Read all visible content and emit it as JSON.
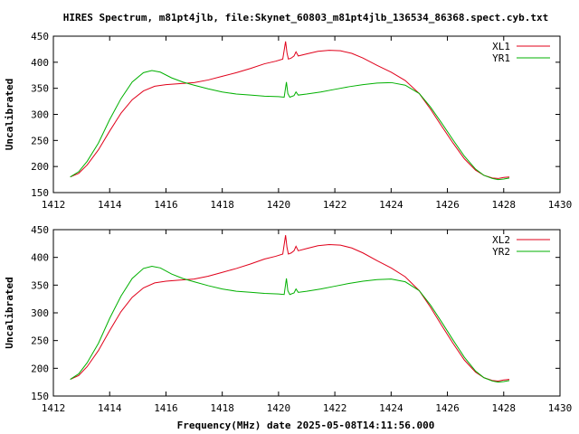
{
  "title": "HIRES Spectrum, m81pt4jlb, file:Skynet_60803_m81pt4jlb_136534_86368.spect.cyb.txt",
  "xlabel": "Frequency(MHz) date 2025-05-08T14:11:56.000",
  "chart_data": [
    {
      "type": "line",
      "ylabel": "Uncalibrated",
      "xlim": [
        1412,
        1430
      ],
      "ylim": [
        150,
        450
      ],
      "xticks": [
        "1412",
        "1414",
        "1416",
        "1418",
        "1420",
        "1422",
        "1424",
        "1426",
        "1428",
        "1430"
      ],
      "yticks": [
        "150",
        "200",
        "250",
        "300",
        "350",
        "400",
        "450"
      ],
      "legend_position": "top-right",
      "series": [
        {
          "name": "XL1",
          "color": "#e0001a",
          "x": [
            1412.6,
            1412.9,
            1413.2,
            1413.6,
            1414.0,
            1414.4,
            1414.8,
            1415.2,
            1415.6,
            1416.0,
            1416.5,
            1417.0,
            1417.5,
            1418.0,
            1418.5,
            1419.0,
            1419.5,
            1419.9,
            1420.15,
            1420.25,
            1420.3,
            1420.35,
            1420.45,
            1420.55,
            1420.62,
            1420.7,
            1421.0,
            1421.4,
            1421.8,
            1422.2,
            1422.6,
            1423.0,
            1423.5,
            1424.0,
            1424.5,
            1425.0,
            1425.4,
            1425.8,
            1426.2,
            1426.6,
            1427.0,
            1427.3,
            1427.6,
            1427.8,
            1428.0,
            1428.2
          ],
          "y": [
            180,
            187,
            203,
            232,
            268,
            302,
            328,
            345,
            354,
            357,
            359,
            361,
            366,
            373,
            380,
            388,
            397,
            402,
            406,
            440,
            418,
            406,
            408,
            412,
            420,
            412,
            416,
            421,
            423,
            422,
            417,
            408,
            394,
            381,
            365,
            340,
            310,
            277,
            245,
            215,
            193,
            183,
            178,
            177,
            179,
            180
          ]
        },
        {
          "name": "YR1",
          "color": "#00b000",
          "x": [
            1412.6,
            1412.9,
            1413.2,
            1413.6,
            1414.0,
            1414.4,
            1414.8,
            1415.2,
            1415.5,
            1415.8,
            1416.2,
            1416.6,
            1417.0,
            1417.5,
            1418.0,
            1418.5,
            1419.0,
            1419.5,
            1420.0,
            1420.2,
            1420.28,
            1420.33,
            1420.4,
            1420.55,
            1420.62,
            1420.7,
            1421.0,
            1421.5,
            1422.0,
            1422.5,
            1423.0,
            1423.5,
            1424.0,
            1424.5,
            1425.0,
            1425.4,
            1425.8,
            1426.2,
            1426.6,
            1427.0,
            1427.3,
            1427.6,
            1427.8,
            1428.0,
            1428.2
          ],
          "y": [
            180,
            190,
            210,
            245,
            290,
            330,
            362,
            380,
            384,
            381,
            370,
            362,
            356,
            349,
            343,
            339,
            337,
            335,
            334,
            333,
            362,
            340,
            333,
            336,
            343,
            337,
            339,
            343,
            348,
            353,
            357,
            360,
            361,
            356,
            340,
            314,
            283,
            251,
            220,
            195,
            183,
            177,
            175,
            176,
            178
          ]
        }
      ]
    },
    {
      "type": "line",
      "ylabel": "Uncalibrated",
      "xlim": [
        1412,
        1430
      ],
      "ylim": [
        150,
        450
      ],
      "xticks": [
        "1412",
        "1414",
        "1416",
        "1418",
        "1420",
        "1422",
        "1424",
        "1426",
        "1428",
        "1430"
      ],
      "yticks": [
        "150",
        "200",
        "250",
        "300",
        "350",
        "400",
        "450"
      ],
      "legend_position": "top-right",
      "series": [
        {
          "name": "XL2",
          "color": "#e0001a",
          "x": [
            1412.6,
            1412.9,
            1413.2,
            1413.6,
            1414.0,
            1414.4,
            1414.8,
            1415.2,
            1415.6,
            1416.0,
            1416.5,
            1417.0,
            1417.5,
            1418.0,
            1418.5,
            1419.0,
            1419.5,
            1419.9,
            1420.15,
            1420.25,
            1420.3,
            1420.35,
            1420.45,
            1420.55,
            1420.62,
            1420.7,
            1421.0,
            1421.4,
            1421.8,
            1422.2,
            1422.6,
            1423.0,
            1423.5,
            1424.0,
            1424.5,
            1425.0,
            1425.4,
            1425.8,
            1426.2,
            1426.6,
            1427.0,
            1427.3,
            1427.6,
            1427.8,
            1428.0,
            1428.2
          ],
          "y": [
            180,
            187,
            203,
            232,
            268,
            302,
            328,
            345,
            354,
            357,
            359,
            361,
            366,
            373,
            380,
            388,
            397,
            402,
            406,
            440,
            418,
            406,
            408,
            412,
            420,
            412,
            416,
            421,
            423,
            422,
            417,
            408,
            394,
            381,
            365,
            340,
            310,
            277,
            245,
            215,
            193,
            183,
            178,
            177,
            179,
            180
          ]
        },
        {
          "name": "YR2",
          "color": "#00b000",
          "x": [
            1412.6,
            1412.9,
            1413.2,
            1413.6,
            1414.0,
            1414.4,
            1414.8,
            1415.2,
            1415.5,
            1415.8,
            1416.2,
            1416.6,
            1417.0,
            1417.5,
            1418.0,
            1418.5,
            1419.0,
            1419.5,
            1420.0,
            1420.2,
            1420.28,
            1420.33,
            1420.4,
            1420.55,
            1420.62,
            1420.7,
            1421.0,
            1421.5,
            1422.0,
            1422.5,
            1423.0,
            1423.5,
            1424.0,
            1424.5,
            1425.0,
            1425.4,
            1425.8,
            1426.2,
            1426.6,
            1427.0,
            1427.3,
            1427.6,
            1427.8,
            1428.0,
            1428.2
          ],
          "y": [
            180,
            190,
            210,
            245,
            290,
            330,
            362,
            380,
            384,
            381,
            370,
            362,
            356,
            349,
            343,
            339,
            337,
            335,
            334,
            333,
            362,
            340,
            333,
            336,
            343,
            337,
            339,
            343,
            348,
            353,
            357,
            360,
            361,
            356,
            340,
            314,
            283,
            251,
            220,
            195,
            183,
            177,
            175,
            176,
            178
          ]
        }
      ]
    }
  ]
}
